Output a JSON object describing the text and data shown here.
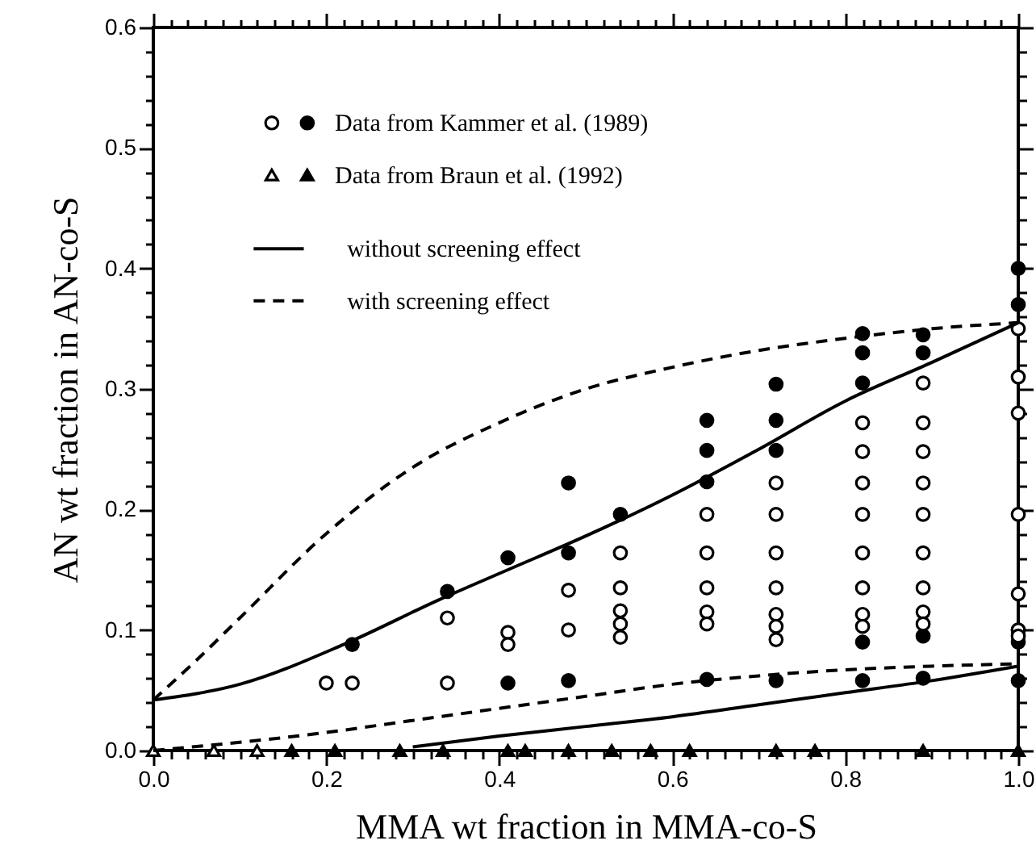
{
  "chart_data": {
    "type": "scatter",
    "xlabel": "MMA wt fraction in MMA-co-S",
    "ylabel": "AN wt fraction in AN-co-S",
    "xlim": [
      0,
      1
    ],
    "ylim": [
      0,
      0.6
    ],
    "xticks": [
      {
        "value": 0,
        "label": "0.0"
      },
      {
        "value": 0.02,
        "label": null
      },
      {
        "value": 0.04,
        "label": null
      },
      {
        "value": 0.06,
        "label": null
      },
      {
        "value": 0.08,
        "label": null
      },
      {
        "value": 0.1,
        "label": null
      },
      {
        "value": 0.12,
        "label": null
      },
      {
        "value": 0.14,
        "label": null
      },
      {
        "value": 0.16,
        "label": null
      },
      {
        "value": 0.18,
        "label": null
      },
      {
        "value": 0.2,
        "label": "0.2"
      },
      {
        "value": 0.22,
        "label": null
      },
      {
        "value": 0.24,
        "label": null
      },
      {
        "value": 0.26,
        "label": null
      },
      {
        "value": 0.28,
        "label": null
      },
      {
        "value": 0.3,
        "label": null
      },
      {
        "value": 0.32,
        "label": null
      },
      {
        "value": 0.34,
        "label": null
      },
      {
        "value": 0.36,
        "label": null
      },
      {
        "value": 0.38,
        "label": null
      },
      {
        "value": 0.4,
        "label": "0.4"
      },
      {
        "value": 0.42,
        "label": null
      },
      {
        "value": 0.44,
        "label": null
      },
      {
        "value": 0.46,
        "label": null
      },
      {
        "value": 0.48,
        "label": null
      },
      {
        "value": 0.5,
        "label": null
      },
      {
        "value": 0.52,
        "label": null
      },
      {
        "value": 0.54,
        "label": null
      },
      {
        "value": 0.56,
        "label": null
      },
      {
        "value": 0.58,
        "label": null
      },
      {
        "value": 0.6,
        "label": "0.6"
      },
      {
        "value": 0.62,
        "label": null
      },
      {
        "value": 0.64,
        "label": null
      },
      {
        "value": 0.66,
        "label": null
      },
      {
        "value": 0.68,
        "label": null
      },
      {
        "value": 0.7,
        "label": null
      },
      {
        "value": 0.72,
        "label": null
      },
      {
        "value": 0.74,
        "label": null
      },
      {
        "value": 0.76,
        "label": null
      },
      {
        "value": 0.78,
        "label": null
      },
      {
        "value": 0.8,
        "label": "0.8"
      },
      {
        "value": 0.82,
        "label": null
      },
      {
        "value": 0.84,
        "label": null
      },
      {
        "value": 0.86,
        "label": null
      },
      {
        "value": 0.88,
        "label": null
      },
      {
        "value": 0.9,
        "label": null
      },
      {
        "value": 0.92,
        "label": null
      },
      {
        "value": 0.94,
        "label": null
      },
      {
        "value": 0.96,
        "label": null
      },
      {
        "value": 0.98,
        "label": null
      },
      {
        "value": 1,
        "label": "1.0"
      }
    ],
    "yticks": [
      {
        "value": 0,
        "label": "0.0"
      },
      {
        "value": 0.02,
        "label": null
      },
      {
        "value": 0.04,
        "label": null
      },
      {
        "value": 0.06,
        "label": null
      },
      {
        "value": 0.08,
        "label": null
      },
      {
        "value": 0.1,
        "label": "0.1"
      },
      {
        "value": 0.12,
        "label": null
      },
      {
        "value": 0.14,
        "label": null
      },
      {
        "value": 0.16,
        "label": null
      },
      {
        "value": 0.18,
        "label": null
      },
      {
        "value": 0.2,
        "label": "0.2"
      },
      {
        "value": 0.22,
        "label": null
      },
      {
        "value": 0.24,
        "label": null
      },
      {
        "value": 0.26,
        "label": null
      },
      {
        "value": 0.28,
        "label": null
      },
      {
        "value": 0.3,
        "label": "0.3"
      },
      {
        "value": 0.32,
        "label": null
      },
      {
        "value": 0.34,
        "label": null
      },
      {
        "value": 0.36,
        "label": null
      },
      {
        "value": 0.38,
        "label": null
      },
      {
        "value": 0.4,
        "label": "0.4"
      },
      {
        "value": 0.42,
        "label": null
      },
      {
        "value": 0.44,
        "label": null
      },
      {
        "value": 0.46,
        "label": null
      },
      {
        "value": 0.48,
        "label": null
      },
      {
        "value": 0.5,
        "label": "0.5"
      },
      {
        "value": 0.52,
        "label": null
      },
      {
        "value": 0.54,
        "label": null
      },
      {
        "value": 0.56,
        "label": null
      },
      {
        "value": 0.58,
        "label": null
      },
      {
        "value": 0.6,
        "label": "0.6"
      }
    ],
    "legend": "top left",
    "series": [
      {
        "name": "Data from Kammer et al. (1989)",
        "type": "scatter",
        "marker": "circle",
        "color": "#000000",
        "x": [
          0.23,
          0.34,
          0.41,
          0.41,
          0.48,
          0.48,
          0.48,
          0.54,
          0.64,
          0.64,
          0.64,
          0.64,
          0.72,
          0.72,
          0.72,
          0.72,
          0.82,
          0.82,
          0.82,
          0.82,
          0.82,
          0.89,
          0.89,
          0.89,
          0.89,
          1,
          1,
          1,
          1,
          1,
          0.2,
          0.23,
          0.34,
          0.34,
          0.41,
          0.41,
          0.48,
          0.48,
          0.54,
          0.54,
          0.54,
          0.54,
          0.54,
          0.64,
          0.64,
          0.64,
          0.64,
          0.64,
          0.72,
          0.72,
          0.72,
          0.72,
          0.72,
          0.72,
          0.72,
          0.82,
          0.82,
          0.82,
          0.82,
          0.82,
          0.82,
          0.82,
          0.82,
          0.89,
          0.89,
          0.89,
          0.89,
          0.89,
          0.89,
          0.89,
          0.89,
          0.89,
          1,
          1,
          1,
          1,
          1,
          1,
          1
        ],
        "values": [
          0.088,
          0.132,
          0.16,
          0.056,
          0.222,
          0.164,
          0.058,
          0.196,
          0.274,
          0.249,
          0.223,
          0.059,
          0.304,
          0.274,
          0.249,
          0.058,
          0.346,
          0.33,
          0.305,
          0.09,
          0.058,
          0.345,
          0.33,
          0.095,
          0.06,
          0.4,
          0.37,
          0.1,
          0.09,
          0.058,
          0.056,
          0.056,
          0.11,
          0.056,
          0.098,
          0.088,
          0.133,
          0.1,
          0.164,
          0.135,
          0.116,
          0.105,
          0.094,
          0.196,
          0.164,
          0.135,
          0.115,
          0.105,
          0.222,
          0.196,
          0.164,
          0.135,
          0.113,
          0.103,
          0.092,
          0.272,
          0.248,
          0.222,
          0.196,
          0.164,
          0.135,
          0.113,
          0.103,
          0.305,
          0.272,
          0.248,
          0.222,
          0.196,
          0.164,
          0.135,
          0.115,
          0.105,
          0.35,
          0.31,
          0.28,
          0.196,
          0.13,
          0.1,
          0.095
        ],
        "colors": [
          "#000000",
          "#000000",
          "#000000",
          "#000000",
          "#000000",
          "#000000",
          "#000000",
          "#000000",
          "#000000",
          "#000000",
          "#000000",
          "#000000",
          "#000000",
          "#000000",
          "#000000",
          "#000000",
          "#000000",
          "#000000",
          "#000000",
          "#000000",
          "#000000",
          "#000000",
          "#000000",
          "#000000",
          "#000000",
          "#000000",
          "#000000",
          "#000000",
          "#000000",
          "#000000",
          "#ffffff",
          "#ffffff",
          "#ffffff",
          "#ffffff",
          "#ffffff",
          "#ffffff",
          "#ffffff",
          "#ffffff",
          "#ffffff",
          "#ffffff",
          "#ffffff",
          "#ffffff",
          "#ffffff",
          "#ffffff",
          "#ffffff",
          "#ffffff",
          "#ffffff",
          "#ffffff",
          "#ffffff",
          "#ffffff",
          "#ffffff",
          "#ffffff",
          "#ffffff",
          "#ffffff",
          "#ffffff",
          "#ffffff",
          "#ffffff",
          "#ffffff",
          "#ffffff",
          "#ffffff",
          "#ffffff",
          "#ffffff",
          "#ffffff",
          "#ffffff",
          "#ffffff",
          "#ffffff",
          "#ffffff",
          "#ffffff",
          "#ffffff",
          "#ffffff",
          "#ffffff",
          "#ffffff",
          "#ffffff",
          "#ffffff",
          "#ffffff",
          "#ffffff",
          "#ffffff",
          "#ffffff",
          "#ffffff"
        ]
      },
      {
        "name": "Data from Braun et al. (1992)",
        "type": "scatter",
        "marker": "triangle",
        "color": "#000000",
        "x": [
          0.16,
          0.21,
          0.285,
          0.335,
          0.41,
          0.43,
          0.48,
          0.53,
          0.575,
          0.62,
          0.72,
          0.765,
          0.89,
          1,
          0,
          0.07,
          0.12
        ],
        "values": [
          0,
          0,
          0,
          0,
          0,
          0,
          0,
          0,
          0,
          0,
          0,
          0,
          0,
          0,
          0,
          0,
          0
        ],
        "colors": [
          "#000000",
          "#000000",
          "#000000",
          "#000000",
          "#000000",
          "#000000",
          "#000000",
          "#000000",
          "#000000",
          "#000000",
          "#000000",
          "#000000",
          "#000000",
          "#000000",
          "#ffffff",
          "#ffffff",
          "#ffffff"
        ]
      },
      {
        "name": "without screening effect",
        "type": "line",
        "line_style": "solid",
        "color": "#000000",
        "x": [
          0,
          0.1,
          0.22,
          0.33,
          0.41,
          0.5,
          0.6,
          0.7,
          0.8,
          0.9,
          1,
          null,
          0.3,
          0.4,
          0.5,
          0.6,
          0.7,
          0.8,
          0.9,
          1
        ],
        "values": [
          0.042,
          0.055,
          0.088,
          0.125,
          0.15,
          0.178,
          0.212,
          0.25,
          0.29,
          0.322,
          0.355,
          null,
          0.003,
          0.012,
          0.02,
          0.028,
          0.038,
          0.048,
          0.058,
          0.07
        ]
      },
      {
        "name": "with screening effect",
        "type": "line",
        "line_style": "dashed",
        "color": "#000000",
        "x": [
          0,
          0.05,
          0.1,
          0.2,
          0.3,
          0.4,
          0.5,
          0.6,
          0.7,
          0.8,
          0.9,
          1,
          null,
          0,
          0.2,
          0.3,
          0.4,
          0.5,
          0.6,
          0.7,
          0.8,
          0.9,
          1
        ],
        "values": [
          0.042,
          0.075,
          0.11,
          0.18,
          0.235,
          0.272,
          0.3,
          0.318,
          0.332,
          0.342,
          0.35,
          0.355,
          null,
          0,
          0.015,
          0.025,
          0.035,
          0.045,
          0.055,
          0.062,
          0.067,
          0.07,
          0.072
        ]
      }
    ]
  }
}
